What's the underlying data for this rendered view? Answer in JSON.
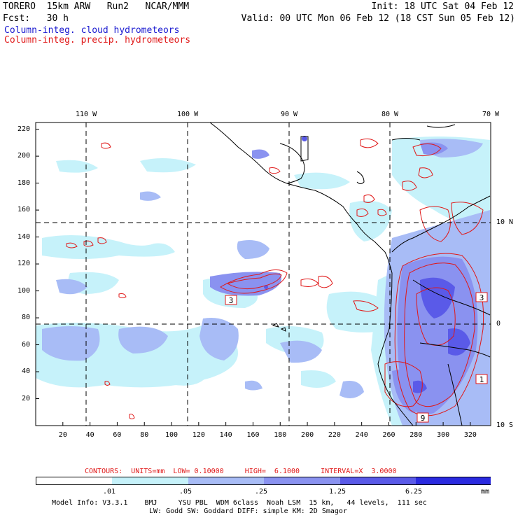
{
  "header": {
    "line1_left": "TORERO  15km ARW   Run2   NCAR/MMM",
    "line1_right": "Init: 18 UTC Sat 04 Feb 12",
    "line2_left": "Fcst:   30 h",
    "line2_right": "Valid: 00 UTC Mon 06 Feb 12 (18 CST Sun 05 Feb 12)",
    "field1": "Column-integ. cloud hydrometeors",
    "field2": "Column-integ. precip. hydrometeors"
  },
  "map": {
    "top_lon_labels": [
      "110 W",
      "100 W",
      "90 W",
      "80 W",
      "70 W"
    ],
    "right_lat_labels": [
      "10 N",
      "0",
      "10 S"
    ],
    "y_ticks": [
      "220",
      "200",
      "180",
      "160",
      "140",
      "120",
      "100",
      "80",
      "60",
      "40",
      "20"
    ],
    "x_ticks": [
      "20",
      "40",
      "60",
      "80",
      "100",
      "120",
      "140",
      "160",
      "180",
      "200",
      "220",
      "240",
      "260",
      "280",
      "300",
      "320"
    ],
    "grid_x_range": [
      0,
      335
    ],
    "grid_y_range": [
      0,
      225
    ],
    "box_labels": [
      "3",
      "3",
      "1",
      "9"
    ],
    "colors": {
      "level1": "#c6f2fa",
      "level2": "#a8bcf6",
      "level3": "#8a92f0",
      "level4": "#5a5ae8",
      "level5": "#2a2ae0",
      "contour": "#e01818",
      "coast": "#000000"
    }
  },
  "contour_info": {
    "label": "CONTOURS:  UNITS=mm  LOW= 0.10000     HIGH=  6.1000     INTERVAL=X  3.0000"
  },
  "colorbar": {
    "labels": [
      ".01",
      ".05",
      ".25",
      "1.25",
      "6.25",
      "mm"
    ],
    "colors": [
      "#ffffff",
      "#c6f2fa",
      "#a8bcf6",
      "#8a92f0",
      "#5a5ae8",
      "#2a2ae0"
    ]
  },
  "footer": {
    "line1": "Model Info: V3.3.1    BMJ     YSU PBL  WDM 6class  Noah LSM  15 km,   44 levels,  111 sec",
    "line2": "LW: Godd SW: Goddard DIFF: simple KM: 2D Smagor"
  }
}
